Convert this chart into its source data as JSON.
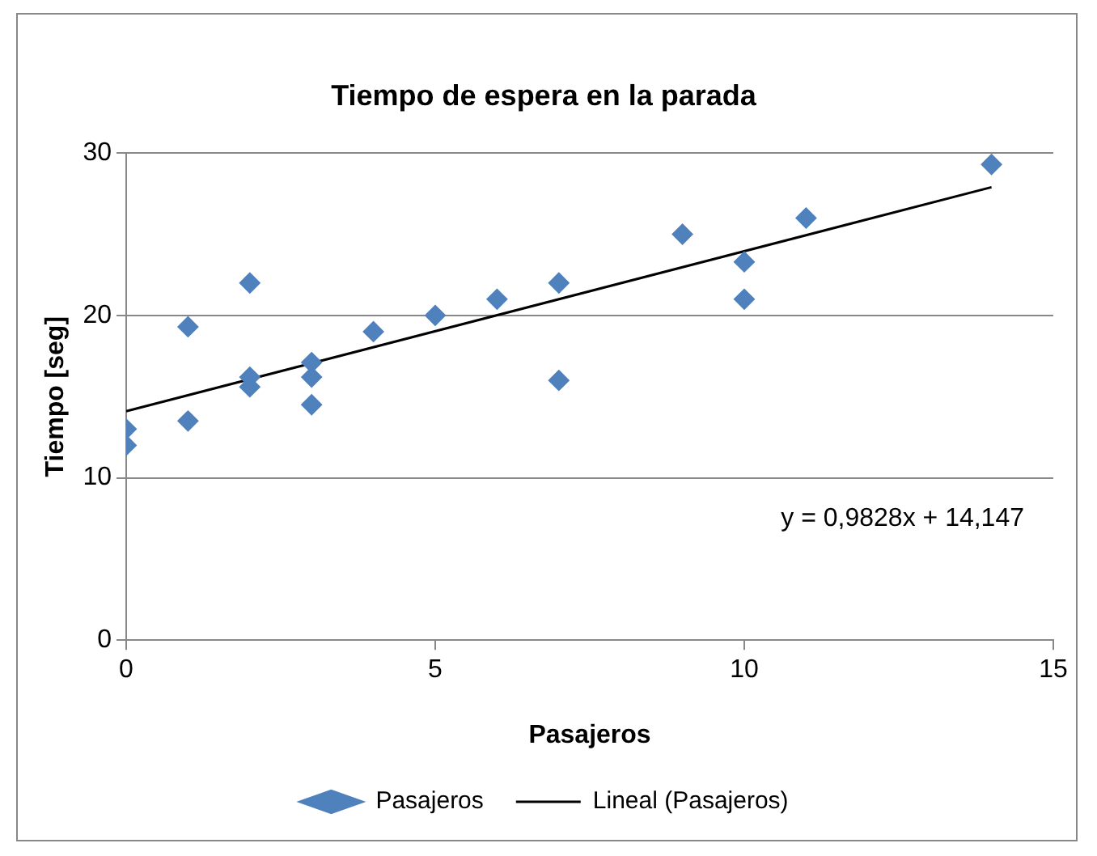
{
  "chart_data": {
    "type": "scatter",
    "title": "Tiempo de espera en la parada",
    "xlabel": "Pasajeros",
    "ylabel": "Tiempo [seg]",
    "xlim": [
      0,
      15
    ],
    "xticks": [
      0,
      5,
      10,
      15
    ],
    "ylim": [
      0,
      30
    ],
    "yticks": [
      0,
      10,
      20,
      30
    ],
    "grid": "y",
    "legend": "bottom",
    "marker": "diamond",
    "annotations": [
      "y = 0,9828x + 14,147"
    ],
    "series": [
      {
        "name": "Pasajeros",
        "color": "#4f81bd",
        "x": [
          0,
          0,
          1,
          1,
          2,
          2,
          2,
          3,
          3,
          3,
          4,
          5,
          6,
          7,
          7,
          9,
          10,
          10,
          11,
          14
        ],
        "values": [
          13,
          12,
          19.3,
          13.5,
          22,
          16.2,
          15.6,
          17.1,
          16.2,
          14.5,
          19,
          20,
          21,
          22,
          16,
          25,
          23.3,
          21,
          26,
          29.3
        ]
      },
      {
        "name": "Lineal (Pasajeros)",
        "type": "line",
        "marker": "none",
        "color": "#000000",
        "x": [
          0,
          14
        ],
        "values": [
          14.1,
          27.9
        ]
      }
    ]
  }
}
